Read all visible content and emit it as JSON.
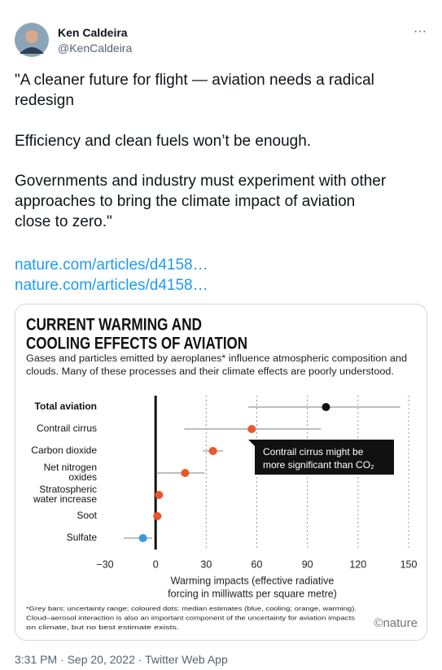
{
  "tweet": {
    "name": "Ken Caldeira",
    "handle": "@KenCaldeira",
    "menu": "···",
    "paragraphs": [
      [
        "\"A cleaner future for flight — aviation needs a radical",
        "redesign"
      ],
      [
        "Efficiency and clean fuels won’t be enough."
      ],
      [
        "Governments and industry must experiment with other",
        "approaches to bring the climate impact of aviation",
        "close to zero.\""
      ]
    ],
    "links": [
      "nature.com/articles/d4158…",
      "nature.com/articles/d4158…"
    ],
    "footer": "3:31 PM · Sep 20, 2022 · Twitter Web App"
  },
  "chart_data": {
    "type": "dot-errorbar",
    "title": [
      "CURRENT WARMING AND",
      "COOLING EFFECTS OF AVIATION"
    ],
    "subtitle": [
      "Gases and particles emitted by aeroplanes* influence atmospheric composition and",
      "clouds. Many of these processes and their climate effects are poorly understood."
    ],
    "categories": [
      [
        "Total aviation"
      ],
      [
        "Contrail cirrus"
      ],
      [
        "Carbon dioxide"
      ],
      [
        "Net nitrogen",
        "oxides"
      ],
      [
        "Stratospheric",
        "water increase"
      ],
      [
        "Soot"
      ],
      [
        "Sulfate"
      ]
    ],
    "series": [
      {
        "values": [
          101,
          57,
          34,
          17.5,
          2,
          1,
          -7.5
        ],
        "lows": [
          55,
          17,
          28,
          0.5,
          1,
          0,
          -19
        ],
        "highs": [
          145,
          98,
          40,
          29,
          3,
          4,
          -2
        ],
        "colors": [
          "#111111",
          "#e8562a",
          "#e8562a",
          "#e8562a",
          "#e8562a",
          "#e8562a",
          "#3a9ad9"
        ]
      }
    ],
    "xlim": [
      -30,
      150
    ],
    "xticks": [
      {
        "value": -30,
        "label": "−30"
      },
      0,
      30,
      60,
      90,
      120,
      150
    ],
    "xlabel": [
      "Warming impacts (effective radiative",
      "forcing in milliwatts per square metre)"
    ],
    "annotation": [
      "Contrail cirrus might be",
      "more significant than CO₂"
    ],
    "footnote": [
      "*Grey bars: uncertainty range; coloured dots: median estimates (blue, cooling; orange, warming).",
      "Cloud–aerosol interaction is also an important component of the uncertainty for aviation impacts",
      "on climate, but no best estimate exists."
    ],
    "source": "©nature"
  }
}
